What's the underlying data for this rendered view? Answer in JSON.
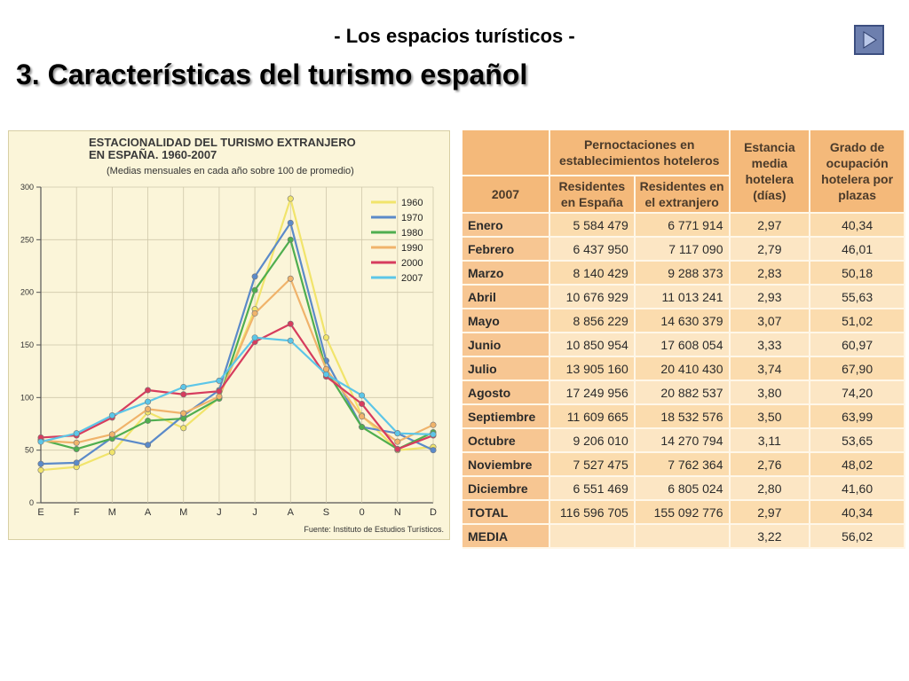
{
  "slide": {
    "subtitle": "- Los espacios turísticos -",
    "title": "3. Características del turismo español",
    "nav_icon": "play-next-icon"
  },
  "chart_data": {
    "type": "line",
    "title_line1": "ESTACIONALIDAD DEL TURISMO EXTRANJERO",
    "title_line2": "EN ESPAÑA. 1960-2007",
    "subtitle": "(Medias mensuales en cada año sobre 100 de promedio)",
    "source": "Fuente: Instituto de Estudios Turísticos.",
    "categories": [
      "E",
      "F",
      "M",
      "A",
      "M",
      "J",
      "J",
      "A",
      "S",
      "0",
      "N",
      "D"
    ],
    "yticks": [
      "0",
      "50",
      "100",
      "150",
      "200",
      "250",
      "300"
    ],
    "ylim": [
      0,
      300
    ],
    "legend_position": "top-right",
    "series": [
      {
        "name": "1960",
        "color": "#f1e46b",
        "values": [
          31,
          34,
          48,
          86,
          71,
          100,
          184,
          289,
          157,
          83,
          50,
          53
        ]
      },
      {
        "name": "1970",
        "color": "#5b8ac9",
        "values": [
          37,
          38,
          62,
          55,
          83,
          107,
          215,
          266,
          135,
          72,
          66,
          50
        ]
      },
      {
        "name": "1980",
        "color": "#4fae4f",
        "values": [
          60,
          51,
          61,
          78,
          80,
          99,
          202,
          250,
          126,
          72,
          51,
          67
        ]
      },
      {
        "name": "1990",
        "color": "#f0b36b",
        "values": [
          59,
          57,
          65,
          89,
          85,
          101,
          180,
          213,
          127,
          82,
          58,
          74
        ]
      },
      {
        "name": "2000",
        "color": "#d63c5e",
        "values": [
          62,
          64,
          81,
          107,
          103,
          106,
          153,
          170,
          120,
          94,
          51,
          64
        ]
      },
      {
        "name": "2007",
        "color": "#5cc6e8",
        "values": [
          58,
          66,
          83,
          96,
          110,
          116,
          157,
          154,
          122,
          102,
          66,
          65
        ]
      }
    ]
  },
  "table": {
    "header_group": "Pernoctaciones en establecimientos hoteleros",
    "year": "2007",
    "col_residentes_espana": "Residentes en España",
    "col_residentes_extranjero": "Residentes en el extranjero",
    "col_estancia": "Estancia media hotelera (días)",
    "col_grado": "Grado de ocupación hotelera por plazas",
    "rows": [
      {
        "month": "Enero",
        "esp": "5 584 479",
        "ext": "6 771 914",
        "est": "2,97",
        "grado": "40,34"
      },
      {
        "month": "Febrero",
        "esp": "6 437 950",
        "ext": "7 117 090",
        "est": "2,79",
        "grado": "46,01"
      },
      {
        "month": "Marzo",
        "esp": "8 140 429",
        "ext": "9 288 373",
        "est": "2,83",
        "grado": "50,18"
      },
      {
        "month": "Abril",
        "esp": "10 676 929",
        "ext": "11 013 241",
        "est": "2,93",
        "grado": "55,63"
      },
      {
        "month": "Mayo",
        "esp": "8 856 229",
        "ext": "14 630 379",
        "est": "3,07",
        "grado": "51,02"
      },
      {
        "month": "Junio",
        "esp": "10 850 954",
        "ext": "17 608 054",
        "est": "3,33",
        "grado": "60,97"
      },
      {
        "month": "Julio",
        "esp": "13 905 160",
        "ext": "20 410 430",
        "est": "3,74",
        "grado": "67,90"
      },
      {
        "month": "Agosto",
        "esp": "17 249 956",
        "ext": "20 882 537",
        "est": "3,80",
        "grado": "74,20"
      },
      {
        "month": "Septiembre",
        "esp": "11 609 665",
        "ext": "18 532 576",
        "est": "3,50",
        "grado": "63,99"
      },
      {
        "month": "Octubre",
        "esp": "9 206 010",
        "ext": "14 270 794",
        "est": "3,11",
        "grado": "53,65"
      },
      {
        "month": "Noviembre",
        "esp": "7 527 475",
        "ext": "7 762 364",
        "est": "2,76",
        "grado": "48,02"
      },
      {
        "month": "Diciembre",
        "esp": "6 551 469",
        "ext": "6 805 024",
        "est": "2,80",
        "grado": "41,60"
      },
      {
        "month": "TOTAL",
        "esp": "116 596 705",
        "ext": "155 092 776",
        "est": "2,97",
        "grado": "40,34"
      },
      {
        "month": "MEDIA",
        "esp": "",
        "ext": "",
        "est": "3,22",
        "grado": "56,02"
      }
    ]
  }
}
